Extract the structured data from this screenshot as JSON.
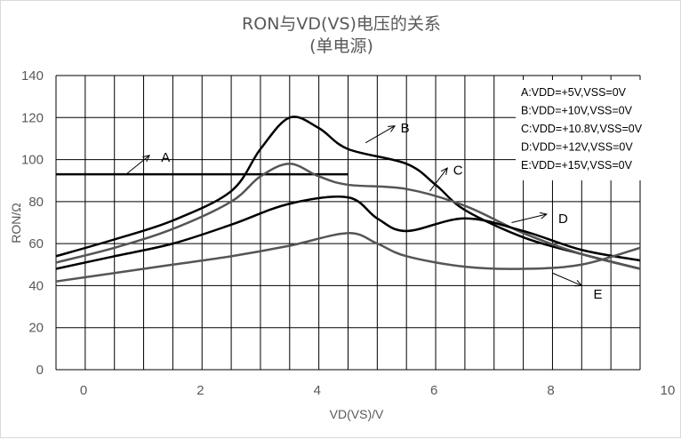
{
  "chart_data": {
    "type": "line",
    "title": "RON与VD(VS)电压的关系",
    "subtitle": "(单电源)",
    "xlabel": "VD(VS)/V",
    "ylabel": "RON/Ω",
    "xlim": [
      0,
      10
    ],
    "ylim": [
      0,
      140
    ],
    "xticks": [
      0,
      2,
      4,
      6,
      8,
      10
    ],
    "yticks": [
      0,
      20,
      40,
      60,
      80,
      100,
      120,
      140
    ],
    "grid": true,
    "legend_position": "top-right",
    "legend": [
      "A:VDD=+5V,VSS=0V",
      "B:VDD=+10V,VSS=0V",
      "C:VDD=+10.8V,VSS=0V",
      "D:VDD=+12V,VSS=0V",
      "E:VDD=+15V,VSS=0V"
    ],
    "series": [
      {
        "name": "A",
        "color": "#000000",
        "x": [
          0,
          1,
          2,
          3,
          4,
          5
        ],
        "y": [
          93,
          93,
          93,
          93,
          93,
          93
        ]
      },
      {
        "name": "B",
        "color": "#000000",
        "x": [
          0,
          1,
          2,
          3,
          3.5,
          4,
          4.5,
          5,
          6,
          6.5,
          7,
          8,
          9,
          10
        ],
        "y": [
          54,
          62,
          71,
          85,
          105,
          120,
          115,
          105,
          98,
          88,
          76,
          63,
          55,
          48
        ]
      },
      {
        "name": "C",
        "color": "#555555",
        "x": [
          0,
          1,
          2,
          3,
          3.5,
          4,
          4.5,
          5,
          6,
          7,
          8,
          9,
          10
        ],
        "y": [
          51,
          58,
          67,
          80,
          92,
          98,
          92,
          88,
          86,
          78,
          65,
          55,
          48
        ]
      },
      {
        "name": "D",
        "color": "#000000",
        "x": [
          0,
          1,
          2,
          3,
          4,
          5,
          5.5,
          6,
          7,
          8,
          9,
          10
        ],
        "y": [
          48,
          54,
          60,
          69,
          79,
          82,
          72,
          66,
          72,
          66,
          57,
          52
        ]
      },
      {
        "name": "E",
        "color": "#555555",
        "x": [
          0,
          1,
          2,
          3,
          4,
          5,
          5.5,
          6,
          7,
          8,
          9,
          10
        ],
        "y": [
          42,
          46,
          50,
          54,
          59,
          65,
          60,
          54,
          49,
          48,
          50,
          58
        ]
      }
    ],
    "series_labels": [
      {
        "name": "A",
        "arrow_from": [
          1.2,
          93
        ],
        "arrow_to": [
          1.6,
          102
        ],
        "label_at": [
          1.8,
          101
        ]
      },
      {
        "name": "B",
        "arrow_from": [
          5.3,
          108
        ],
        "arrow_to": [
          5.8,
          116
        ],
        "label_at": [
          5.9,
          115
        ]
      },
      {
        "name": "C",
        "arrow_from": [
          6.4,
          85
        ],
        "arrow_to": [
          6.7,
          96
        ],
        "label_at": [
          6.8,
          95
        ]
      },
      {
        "name": "D",
        "arrow_from": [
          7.8,
          70
        ],
        "arrow_to": [
          8.4,
          74
        ],
        "label_at": [
          8.6,
          72
        ]
      },
      {
        "name": "E",
        "arrow_from": [
          8.5,
          46
        ],
        "arrow_to": [
          9.0,
          40
        ],
        "label_at": [
          9.2,
          36
        ]
      }
    ]
  }
}
